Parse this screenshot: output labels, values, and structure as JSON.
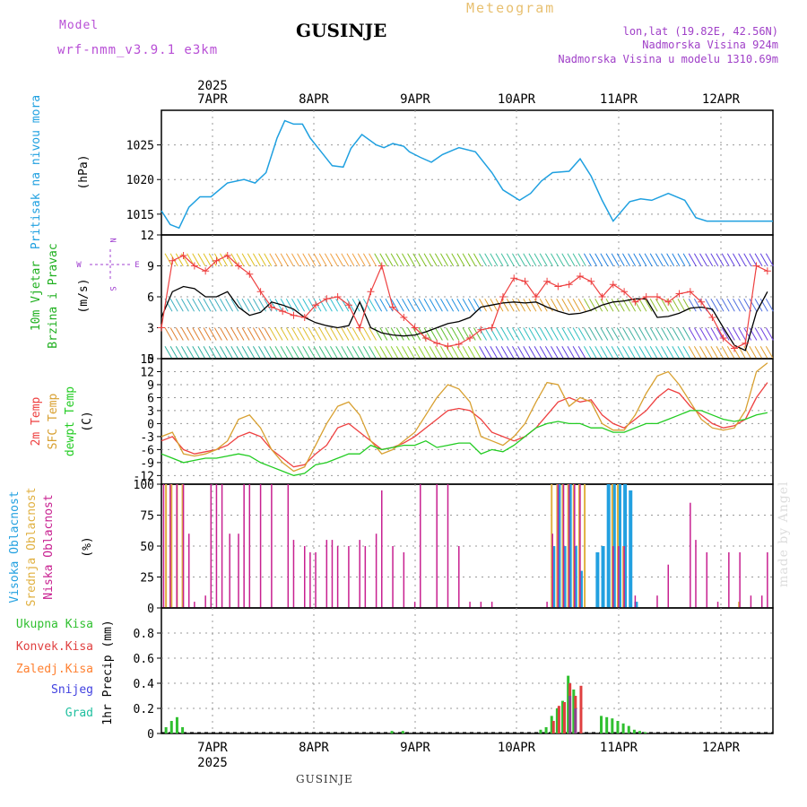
{
  "header": {
    "title": "GUSINJE",
    "model_label": "Model",
    "model_name": "wrf-nmm_v3.9.1 e3km",
    "meteogram": "Meteogram",
    "lonlat": "lon,lat (19.82E, 42.56N)",
    "altitude": "Nadmorska Visina 924m",
    "model_altitude": "Nadmorska Visina u modelu 1310.69m"
  },
  "footer": {
    "station": "GUSINJE",
    "credit": "made by Angel"
  },
  "colors": {
    "pressure": "#1fa0e0",
    "wind_speed": "#000000",
    "gust": "#ee4040",
    "temp2m": "#ee4040",
    "sfc": "#d8a030",
    "dewpt": "#22cc22",
    "high_cloud": "#22a0e0",
    "mid_cloud": "#e0b040",
    "low_cloud": "#c82090",
    "precip_total": "#30c030",
    "precip_conv": "#e04040",
    "precip_frozen": "#ff8030",
    "snow": "#4040e0",
    "graupel": "#20c0a0"
  },
  "chart_data": [
    {
      "type": "line",
      "id": "pressure",
      "ylabel": "Pritisak na nivou mora",
      "unit": "(hPa)",
      "ylim": [
        1012,
        1030
      ],
      "yticks": [
        1015,
        1020,
        1025
      ],
      "x_days": [
        0.0,
        0.08,
        0.16,
        0.25,
        0.35,
        0.45,
        0.6,
        0.75,
        0.85,
        0.95,
        1.05,
        1.12,
        1.2,
        1.28,
        1.35,
        1.45,
        1.55,
        1.65,
        1.72,
        1.82,
        1.95,
        2.02,
        2.1,
        2.2,
        2.25,
        2.35,
        2.45,
        2.55,
        2.7,
        2.85,
        3.0,
        3.1,
        3.25,
        3.35,
        3.45,
        3.55,
        3.7,
        3.8,
        3.9,
        4.0,
        4.1,
        4.25,
        4.35,
        4.45,
        4.6,
        4.75,
        4.85,
        4.95,
        5.05,
        5.15,
        5.25,
        5.35,
        5.45,
        5.55
      ],
      "values": [
        1015.5,
        1013.5,
        1013,
        1016,
        1017.5,
        1017.5,
        1019.5,
        1020,
        1019.5,
        1021,
        1026,
        1028.5,
        1028,
        1028,
        1026,
        1024,
        1022,
        1021.8,
        1024.5,
        1026.5,
        1025,
        1024.6,
        1025.2,
        1024.8,
        1024,
        1023.2,
        1022.5,
        1023.6,
        1024.6,
        1024,
        1021,
        1018.5,
        1017,
        1018,
        1019.8,
        1021,
        1021.2,
        1023,
        1020.5,
        1017,
        1014,
        1016.8,
        1017.2,
        1017,
        1018,
        1017,
        1014.5,
        1014,
        1014,
        1014,
        1014,
        1014,
        1014,
        1014
      ]
    },
    {
      "type": "line",
      "id": "wind",
      "ylabel": "10m Vjetar Brzina i Pravac",
      "unit": "(m/s)",
      "ylim": [
        0,
        12
      ],
      "yticks": [
        0,
        3,
        6,
        9,
        12
      ],
      "compass": [
        "N",
        "W",
        "E",
        "S"
      ],
      "series": [
        {
          "name": "speed",
          "x": [
            0,
            0.1,
            0.2,
            0.3,
            0.4,
            0.5,
            0.6,
            0.7,
            0.8,
            0.9,
            1.0,
            1.1,
            1.2,
            1.3,
            1.4,
            1.5,
            1.6,
            1.7,
            1.8,
            1.9,
            2.0,
            2.1,
            2.2,
            2.3,
            2.4,
            2.5,
            2.6,
            2.7,
            2.8,
            2.9,
            3.0,
            3.1,
            3.2,
            3.3,
            3.4,
            3.5,
            3.6,
            3.7,
            3.8,
            3.9,
            4.0,
            4.1,
            4.2,
            4.3,
            4.4,
            4.5,
            4.6,
            4.7,
            4.8,
            4.9,
            5.0,
            5.1,
            5.2,
            5.3,
            5.4,
            5.5
          ],
          "values": [
            4,
            6.5,
            7,
            6.8,
            6,
            6,
            6.5,
            5,
            4.2,
            4.5,
            5.5,
            5.2,
            4.8,
            4,
            3.5,
            3.2,
            3,
            3.2,
            5.5,
            3,
            2.5,
            2.3,
            2.2,
            2.3,
            2.6,
            3,
            3.4,
            3.6,
            4,
            5,
            5.2,
            5.4,
            5.5,
            5.4,
            5.5,
            5,
            4.6,
            4.3,
            4.4,
            4.7,
            5.2,
            5.5,
            5.6,
            5.8,
            5.8,
            4,
            4.1,
            4.4,
            4.9,
            5,
            4.8,
            3,
            1.3,
            0.8,
            4.5,
            6.5
          ]
        },
        {
          "name": "gust",
          "x": [
            0,
            0.1,
            0.2,
            0.3,
            0.4,
            0.5,
            0.6,
            0.7,
            0.8,
            0.9,
            1.0,
            1.1,
            1.2,
            1.3,
            1.4,
            1.5,
            1.6,
            1.7,
            1.8,
            1.9,
            2.0,
            2.1,
            2.2,
            2.3,
            2.4,
            2.5,
            2.6,
            2.7,
            2.8,
            2.9,
            3.0,
            3.1,
            3.2,
            3.3,
            3.4,
            3.5,
            3.6,
            3.7,
            3.8,
            3.9,
            4.0,
            4.1,
            4.2,
            4.3,
            4.4,
            4.5,
            4.6,
            4.7,
            4.8,
            4.9,
            5.0,
            5.1,
            5.2,
            5.3,
            5.4,
            5.5
          ],
          "values": [
            3,
            9.5,
            10,
            9,
            8.5,
            9.5,
            10,
            9,
            8.2,
            6.5,
            5,
            4.6,
            4.2,
            4,
            5.2,
            5.8,
            6,
            5.2,
            3,
            6.5,
            9,
            5,
            4,
            3,
            2,
            1.5,
            1.2,
            1.4,
            2,
            2.8,
            3,
            6,
            7.8,
            7.5,
            6,
            7.5,
            7,
            7.2,
            8,
            7.5,
            6,
            7.2,
            6.5,
            5.5,
            6,
            6,
            5.5,
            6.3,
            6.5,
            5.5,
            4,
            2,
            1,
            1.5,
            9,
            8.5
          ]
        }
      ]
    },
    {
      "type": "line",
      "id": "temperature",
      "ylabels": [
        "2m Temp",
        "SFC Temp",
        "dewpt Temp"
      ],
      "unit": "(C)",
      "ylim": [
        -14,
        15
      ],
      "yticks": [
        -12,
        -9,
        -6,
        -3,
        0,
        3,
        6,
        9,
        12,
        15
      ],
      "series": [
        {
          "name": "2m Temp",
          "x": [
            0,
            0.1,
            0.2,
            0.3,
            0.4,
            0.5,
            0.6,
            0.7,
            0.8,
            0.9,
            1.0,
            1.1,
            1.2,
            1.3,
            1.4,
            1.5,
            1.6,
            1.7,
            1.8,
            1.9,
            2.0,
            2.1,
            2.2,
            2.3,
            2.4,
            2.5,
            2.6,
            2.7,
            2.8,
            2.9,
            3.0,
            3.1,
            3.2,
            3.3,
            3.4,
            3.5,
            3.6,
            3.7,
            3.8,
            3.9,
            4.0,
            4.1,
            4.2,
            4.3,
            4.4,
            4.5,
            4.6,
            4.7,
            4.8,
            4.9,
            5.0,
            5.1,
            5.2,
            5.3,
            5.4,
            5.5
          ],
          "values": [
            -4,
            -3,
            -6,
            -7,
            -6.5,
            -6,
            -5,
            -3,
            -2,
            -3,
            -6,
            -8,
            -10,
            -9.5,
            -7,
            -5,
            -1,
            0,
            -2,
            -4,
            -6,
            -5.5,
            -4.5,
            -3,
            -1,
            1,
            3,
            3.5,
            3,
            1,
            -2,
            -3,
            -4,
            -3,
            -1,
            2,
            5,
            6,
            5,
            5.5,
            2,
            0,
            -1,
            1,
            3,
            6,
            8,
            7,
            4,
            2,
            0,
            -1,
            -0.5,
            1,
            6,
            9.5
          ]
        },
        {
          "name": "SFC Temp",
          "x": [
            0,
            0.1,
            0.2,
            0.3,
            0.4,
            0.5,
            0.6,
            0.7,
            0.8,
            0.9,
            1.0,
            1.1,
            1.2,
            1.3,
            1.4,
            1.5,
            1.6,
            1.7,
            1.8,
            1.9,
            2.0,
            2.1,
            2.2,
            2.3,
            2.4,
            2.5,
            2.6,
            2.7,
            2.8,
            2.9,
            3.0,
            3.1,
            3.2,
            3.3,
            3.4,
            3.5,
            3.6,
            3.7,
            3.8,
            3.9,
            4.0,
            4.1,
            4.2,
            4.3,
            4.4,
            4.5,
            4.6,
            4.7,
            4.8,
            4.9,
            5.0,
            5.1,
            5.2,
            5.3,
            5.4,
            5.5
          ],
          "values": [
            -3,
            -2,
            -7,
            -7.5,
            -7,
            -6,
            -4,
            1,
            2,
            -1,
            -6,
            -9,
            -11,
            -10,
            -5,
            0,
            4,
            5,
            2,
            -4,
            -7,
            -6,
            -4,
            -2,
            2,
            6,
            9,
            8,
            5,
            -3,
            -4,
            -5,
            -3,
            0,
            5,
            9.5,
            9,
            4,
            6,
            5,
            0,
            -1.5,
            -1.5,
            2,
            7,
            11,
            12,
            9,
            5,
            1,
            -1,
            -1.5,
            -1,
            3,
            12,
            14
          ]
        },
        {
          "name": "dewpt Temp",
          "x": [
            0,
            0.1,
            0.2,
            0.3,
            0.4,
            0.5,
            0.6,
            0.7,
            0.8,
            0.9,
            1.0,
            1.1,
            1.2,
            1.3,
            1.4,
            1.5,
            1.6,
            1.7,
            1.8,
            1.9,
            2.0,
            2.1,
            2.2,
            2.3,
            2.4,
            2.5,
            2.6,
            2.7,
            2.8,
            2.9,
            3.0,
            3.1,
            3.2,
            3.3,
            3.4,
            3.5,
            3.6,
            3.7,
            3.8,
            3.9,
            4.0,
            4.1,
            4.2,
            4.3,
            4.4,
            4.5,
            4.6,
            4.7,
            4.8,
            4.9,
            5.0,
            5.1,
            5.2,
            5.3,
            5.4,
            5.5
          ],
          "values": [
            -7,
            -8,
            -9,
            -8.5,
            -8,
            -8,
            -7.5,
            -7,
            -7.5,
            -9,
            -10,
            -11,
            -12,
            -11.5,
            -9.5,
            -9,
            -8,
            -7,
            -7,
            -5,
            -6,
            -5.5,
            -5,
            -5,
            -4,
            -5.5,
            -5,
            -4.5,
            -4.5,
            -7,
            -6,
            -6.5,
            -5,
            -3,
            -1,
            0,
            0.5,
            0,
            0,
            -1,
            -1,
            -2,
            -2,
            -1,
            0,
            0,
            1,
            2,
            3,
            3,
            2,
            1,
            0.5,
            1,
            2,
            2.5
          ]
        }
      ]
    },
    {
      "type": "bar",
      "id": "clouds",
      "ylabels": [
        "Visoka Oblacnost",
        "Srednja Oblacnost",
        "Niska Oblacnost"
      ],
      "unit": "(%)",
      "ylim": [
        0,
        100
      ],
      "yticks": [
        0,
        25,
        50,
        75,
        100
      ],
      "series": [
        {
          "name": "Visoka Oblacnost",
          "x": [
            3.55,
            3.6,
            3.65,
            3.7,
            3.75,
            3.8,
            3.95,
            4.0,
            4.05,
            4.1,
            4.15,
            4.2,
            4.25,
            4.3
          ],
          "values": [
            50,
            100,
            50,
            100,
            50,
            30,
            45,
            50,
            100,
            100,
            100,
            100,
            95,
            5
          ]
        },
        {
          "name": "Srednja Oblacnost",
          "x": [
            0.05,
            0.1,
            0.15,
            0.2,
            3.55,
            3.6,
            3.65,
            3.7,
            3.75,
            3.8,
            3.85,
            4.1,
            4.15,
            4.2,
            5.25
          ],
          "values": [
            100,
            100,
            100,
            100,
            100,
            100,
            100,
            100,
            100,
            100,
            100,
            100,
            100,
            50,
            5
          ]
        },
        {
          "name": "Niska Oblacnost",
          "x": [
            0.02,
            0.08,
            0.14,
            0.2,
            0.25,
            0.3,
            0.4,
            0.45,
            0.5,
            0.55,
            0.62,
            0.7,
            0.75,
            0.8,
            0.9,
            1.0,
            1.15,
            1.2,
            1.3,
            1.35,
            1.4,
            1.5,
            1.55,
            1.6,
            1.7,
            1.8,
            1.85,
            1.95,
            2.0,
            2.1,
            2.2,
            2.3,
            2.35,
            2.5,
            2.6,
            2.7,
            2.8,
            2.9,
            3.0,
            3.5,
            3.55,
            3.6,
            3.65,
            3.7,
            3.75,
            3.8,
            4.1,
            4.15,
            4.2,
            4.3,
            4.5,
            4.6,
            4.8,
            4.85,
            4.95,
            5.05,
            5.15,
            5.25,
            5.35,
            5.45,
            5.5
          ],
          "values": [
            100,
            100,
            100,
            100,
            60,
            5,
            10,
            100,
            100,
            100,
            60,
            60,
            100,
            100,
            100,
            100,
            100,
            55,
            50,
            45,
            45,
            55,
            55,
            50,
            50,
            55,
            50,
            60,
            95,
            50,
            45,
            5,
            100,
            100,
            100,
            50,
            5,
            5,
            5,
            5,
            60,
            100,
            100,
            100,
            100,
            100,
            50,
            50,
            50,
            10,
            10,
            35,
            85,
            55,
            45,
            5,
            45,
            45,
            10,
            10,
            45
          ]
        }
      ]
    },
    {
      "type": "bar",
      "id": "precipitation",
      "ylabel": "1hr Precip",
      "unit": "(mm)",
      "legend": [
        "Ukupna Kisa",
        "Konvek.Kisa",
        "Zaledj.Kisa",
        "Snijeg",
        "Grad"
      ],
      "ylim": [
        0,
        1.0
      ],
      "yticks": [
        0,
        0.2,
        0.4,
        0.6,
        0.8
      ],
      "series": [
        {
          "name": "Ukupna Kisa",
          "x": [
            0.05,
            0.1,
            0.15,
            0.2,
            2.1,
            2.2,
            3.45,
            3.5,
            3.55,
            3.6,
            3.65,
            3.7,
            3.75,
            4.0,
            4.05,
            4.1,
            4.15,
            4.2,
            4.25,
            4.3,
            4.35,
            4.4
          ],
          "values": [
            0.05,
            0.1,
            0.13,
            0.05,
            0.02,
            0.02,
            0.03,
            0.05,
            0.14,
            0.2,
            0.26,
            0.46,
            0.35,
            0.14,
            0.13,
            0.12,
            0.1,
            0.08,
            0.06,
            0.03,
            0.02,
            0.01
          ]
        },
        {
          "name": "Konvek.Kisa",
          "x": [
            3.55,
            3.6,
            3.65,
            3.7,
            3.75,
            3.8
          ],
          "values": [
            0.1,
            0.22,
            0.25,
            0.4,
            0.3,
            0.38
          ]
        },
        {
          "name": "Snijeg",
          "x": [
            3.7,
            3.75
          ],
          "values": [
            0.3,
            0.2
          ]
        }
      ]
    }
  ],
  "time_axis": {
    "year": "2025",
    "days": [
      "7APR",
      "8APR",
      "9APR",
      "10APR",
      "11APR",
      "12APR"
    ]
  }
}
